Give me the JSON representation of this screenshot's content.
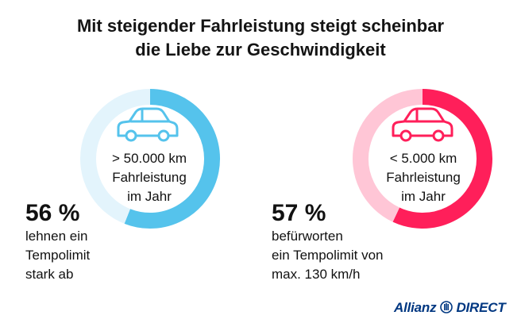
{
  "title": {
    "line1": "Mit steigender Fahrleistung steigt scheinbar",
    "line2": "die Liebe zur Geschwindigkeit"
  },
  "logo": {
    "brand": "Allianz",
    "suffix": "DIRECT",
    "icon": "allianz-eagle-logo"
  },
  "colors": {
    "blue_main": "#55c3ec",
    "blue_light": "#e3f4fc",
    "red_main": "#ff1f5a",
    "red_light": "#ffc6d6"
  },
  "chart_data": [
    {
      "type": "pie",
      "style": "donut",
      "icon": "car-icon",
      "center_label": [
        "> 50.000 km",
        "Fahrleistung",
        "im Jahr"
      ],
      "value": 56,
      "value_label": "56 %",
      "description": [
        "lehnen ein",
        "Tempolimit",
        "stark ab"
      ],
      "slices": [
        {
          "label": "lehnen ein Tempolimit stark ab",
          "value": 56,
          "color": "#55c3ec"
        },
        {
          "label": "",
          "value": 44,
          "color": "#e3f4fc"
        }
      ]
    },
    {
      "type": "pie",
      "style": "donut",
      "icon": "car-icon",
      "center_label": [
        "< 5.000 km",
        "Fahrleistung",
        "im Jahr"
      ],
      "value": 57,
      "value_label": "57 %",
      "description": [
        "befürworten",
        "ein Tempolimit von",
        "max. 130 km/h"
      ],
      "slices": [
        {
          "label": "befürworten ein Tempolimit von max. 130 km/h",
          "value": 57,
          "color": "#ff1f5a"
        },
        {
          "label": "",
          "value": 43,
          "color": "#ffc6d6"
        }
      ]
    }
  ]
}
